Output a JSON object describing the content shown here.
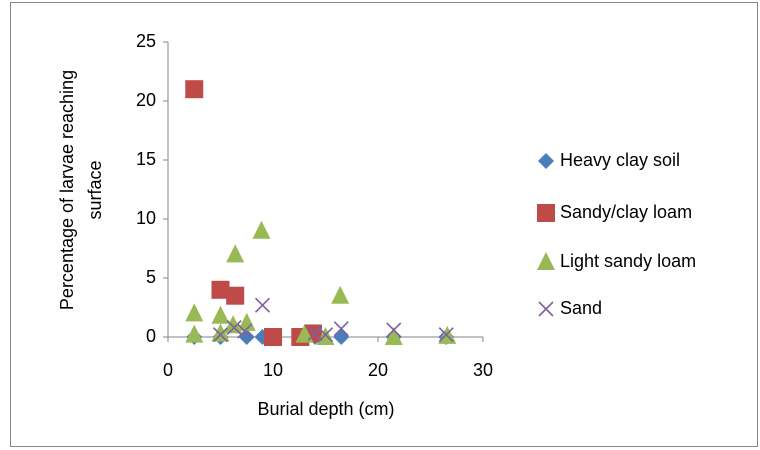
{
  "chart_data": {
    "type": "scatter",
    "xlabel": "Burial depth (cm)",
    "ylabel": [
      "Percentage of larvae reaching",
      "surface"
    ],
    "xlim": [
      0,
      30
    ],
    "xticks": [
      0,
      10,
      20,
      30
    ],
    "ylim": [
      0,
      25
    ],
    "yticks": [
      0,
      5,
      10,
      15,
      20,
      25
    ],
    "grid": false,
    "legend": "right",
    "series": [
      {
        "name": "Heavy clay soil",
        "color": "#4a7ebb",
        "marker": "diamond",
        "x": [
          2.5,
          5,
          7.5,
          9,
          12.5,
          14,
          16.5,
          21.5,
          26.5
        ],
        "values": [
          0,
          0,
          0,
          0,
          0,
          0,
          0,
          0,
          0
        ]
      },
      {
        "name": "Sandy/clay loam",
        "color": "#be4b48",
        "marker": "square",
        "x": [
          2.5,
          5,
          6.4,
          10,
          12.6,
          13.8
        ],
        "values": [
          21,
          4,
          3.5,
          0,
          0,
          0.3
        ]
      },
      {
        "name": "Light sandy loam",
        "color": "#98b954",
        "marker": "triangle",
        "x": [
          2.5,
          2.5,
          5,
          5,
          6.4,
          6.2,
          7.5,
          8.9,
          13,
          15,
          16.4,
          21.5,
          26.6
        ],
        "values": [
          2,
          0.2,
          1.8,
          0.3,
          7,
          1,
          1.2,
          9,
          0.2,
          0,
          3.5,
          0,
          0.1
        ]
      },
      {
        "name": "Sand",
        "color": "#7d60a0",
        "marker": "x",
        "x": [
          5,
          6.3,
          7.3,
          9,
          14,
          15,
          16.5,
          21.5,
          26.5
        ],
        "values": [
          0.2,
          0.8,
          0.5,
          2.7,
          0.3,
          0.2,
          0.7,
          0.6,
          0.2
        ]
      }
    ]
  }
}
